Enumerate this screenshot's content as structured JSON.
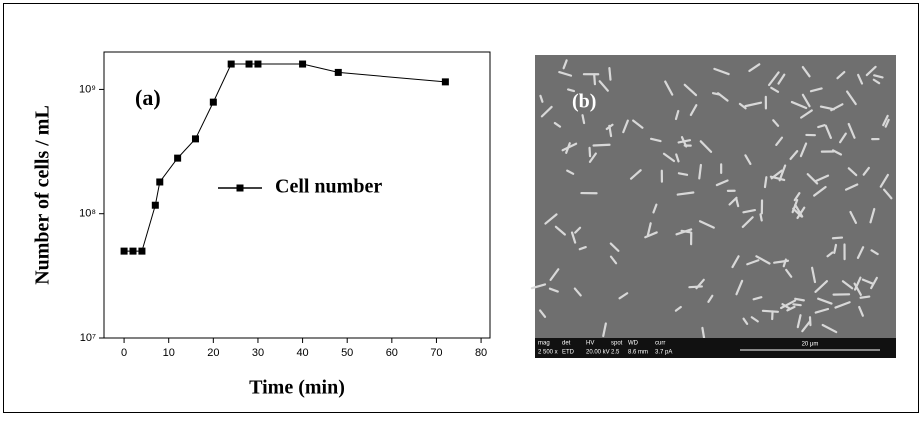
{
  "chart_data": {
    "type": "line",
    "xlabel": "Time (min)",
    "ylabel": "Number of cells / mL",
    "annotation": "(a)",
    "x": [
      0,
      2,
      4,
      7,
      8,
      12,
      16,
      20,
      24,
      28,
      30,
      40,
      48,
      72
    ],
    "series": [
      {
        "name": "Cell number",
        "color": "#000000",
        "values": [
          50000000,
          50000000,
          50000000,
          117000000,
          180000000,
          280000000,
          400000000,
          790000000,
          1600000000,
          1600000000,
          1600000000,
          1600000000,
          1370000000,
          1150000000
        ]
      }
    ],
    "xlim": [
      -4.5,
      82
    ],
    "xticks": [
      0,
      10,
      20,
      30,
      40,
      50,
      60,
      70,
      80
    ],
    "ylim": [
      10000000,
      2000000000
    ],
    "log_y": true,
    "yticks": [
      {
        "value": 10000000,
        "label": "10⁷"
      },
      {
        "value": 100000000,
        "label": "10⁸"
      },
      {
        "value": 1000000000,
        "label": "10⁹"
      }
    ]
  },
  "image": {
    "label": "(b)",
    "info_bar": [
      [
        "mag",
        "2 500 x"
      ],
      [
        "det",
        "ETD"
      ],
      [
        "HV",
        "20.00 kV"
      ],
      [
        "spot",
        "2.5"
      ],
      [
        "WD",
        "8.6 mm"
      ],
      [
        "curr",
        "3.7 pA"
      ]
    ],
    "scale": "20 μm"
  }
}
